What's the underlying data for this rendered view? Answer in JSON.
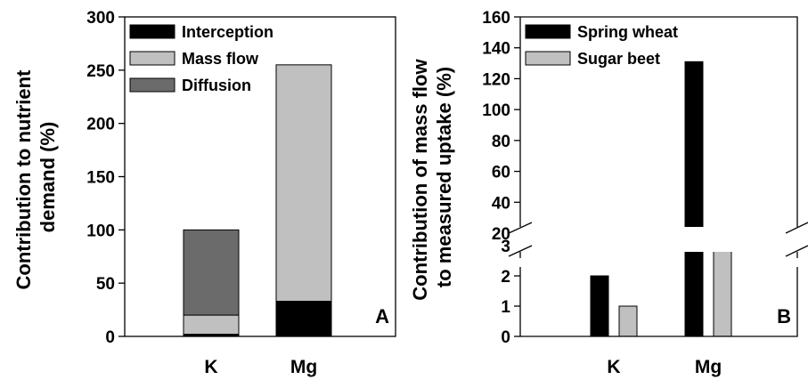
{
  "colors": {
    "interception": "#000000",
    "mass_flow": "#c0c0c0",
    "diffusion": "#6b6b6b",
    "spring_wheat": "#000000",
    "sugar_beet": "#c0c0c0"
  },
  "chart_data": [
    {
      "type": "bar",
      "stacked": true,
      "panel_label": "A",
      "ylabel_lines": [
        "Contribution to nutrient",
        "demand (%)"
      ],
      "categories": [
        "K",
        "Mg"
      ],
      "yticks": [
        "0",
        "50",
        "100",
        "150",
        "200",
        "250",
        "300"
      ],
      "ylim": [
        0,
        300
      ],
      "legend_position": "top-left",
      "series": [
        {
          "name": "Interception",
          "values": [
            2,
            33
          ]
        },
        {
          "name": "Mass flow",
          "values": [
            18,
            222
          ]
        },
        {
          "name": "Diffusion",
          "values": [
            80,
            0
          ]
        }
      ]
    },
    {
      "type": "bar",
      "broken_axis": true,
      "panel_label": "B",
      "ylabel_lines": [
        "Contribution of mass flow",
        "to measured uptake (%)"
      ],
      "categories": [
        "K",
        "Mg"
      ],
      "yticks_lower": [
        "0",
        "1",
        "2",
        "3"
      ],
      "yticks_upper": [
        "20",
        "40",
        "60",
        "80",
        "100",
        "120",
        "140",
        "160"
      ],
      "ylim_lower": [
        0,
        3
      ],
      "ylim_upper": [
        20,
        160
      ],
      "legend_position": "top-left",
      "series": [
        {
          "name": "Spring wheat",
          "values": [
            2,
            131
          ]
        },
        {
          "name": "Sugar beet",
          "values": [
            1,
            22
          ]
        }
      ]
    }
  ]
}
